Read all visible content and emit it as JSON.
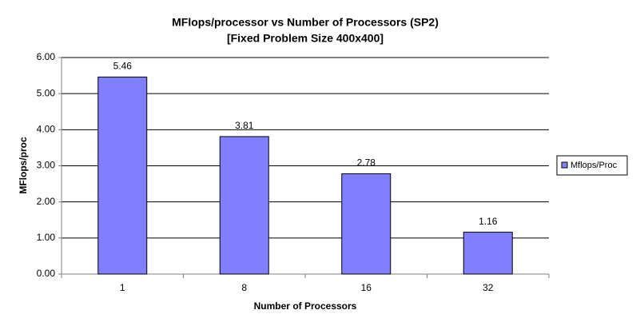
{
  "chart_data": {
    "type": "bar",
    "title": [
      "MFlops/processor vs Number of Processors (SP2)",
      "[Fixed Problem Size 400x400]"
    ],
    "x_label": "Number of Processors",
    "y_label": "MFlops/proc",
    "categories": [
      "1",
      "8",
      "16",
      "32"
    ],
    "series": [
      {
        "name": "Mflops/Proc",
        "color": "#8080ff",
        "values": [
          5.46,
          3.81,
          2.78,
          1.16
        ]
      }
    ],
    "ylim": [
      0,
      6
    ],
    "yticks": [
      {
        "value": 0,
        "label": "0.00"
      },
      {
        "value": 1,
        "label": "1.00"
      },
      {
        "value": 2,
        "label": "2.00"
      },
      {
        "value": 3,
        "label": "3.00"
      },
      {
        "value": 4,
        "label": "4.00"
      },
      {
        "value": 5,
        "label": "5.00"
      },
      {
        "value": 6,
        "label": "6.00"
      }
    ],
    "grid": true,
    "legend": "right"
  }
}
